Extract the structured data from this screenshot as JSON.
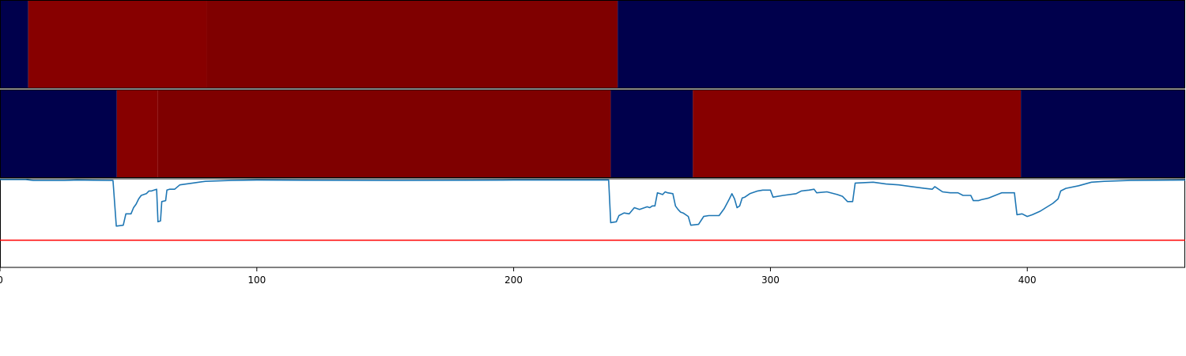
{
  "chart_data": [
    {
      "type": "heatmap",
      "colors": {
        "low": "#00004c",
        "high": "#870000",
        "mid_high": "#7f0000"
      },
      "segments": [
        {
          "x0": 0,
          "x1": 11,
          "level": "low"
        },
        {
          "x0": 11,
          "x1": 80.5,
          "level": "high"
        },
        {
          "x0": 80.5,
          "x1": 240.5,
          "level": "mid_high"
        },
        {
          "x0": 240.5,
          "x1": 461.5,
          "level": "low"
        }
      ]
    },
    {
      "type": "heatmap",
      "colors": {
        "low": "#00004c",
        "high": "#870000",
        "mid_high": "#7f0000"
      },
      "segments": [
        {
          "x0": 0,
          "x1": 45.5,
          "level": "low"
        },
        {
          "x0": 45.5,
          "x1": 61.5,
          "level": "high"
        },
        {
          "x0": 61.5,
          "x1": 237.8,
          "level": "mid_high"
        },
        {
          "x0": 237.8,
          "x1": 269.8,
          "level": "low"
        },
        {
          "x0": 269.8,
          "x1": 397.5,
          "level": "high"
        },
        {
          "x0": 397.5,
          "x1": 461.5,
          "level": "low"
        }
      ]
    },
    {
      "type": "line",
      "xlim": [
        0,
        461.5
      ],
      "ylim": [
        0,
        1
      ],
      "x_ticks": [
        0,
        100,
        200,
        300,
        400
      ],
      "threshold": {
        "y": 0.31,
        "color": "#ff0000"
      },
      "series": [
        {
          "color": "#1f77b4",
          "points": [
            [
              0,
              1.0
            ],
            [
              10,
              1.0
            ],
            [
              13,
              0.99
            ],
            [
              20,
              0.99
            ],
            [
              25,
              0.99
            ],
            [
              30,
              0.995
            ],
            [
              44,
              0.99
            ],
            [
              45.3,
              0.47
            ],
            [
              48,
              0.48
            ],
            [
              49,
              0.61
            ],
            [
              51,
              0.61
            ],
            [
              52,
              0.68
            ],
            [
              53,
              0.72
            ],
            [
              54,
              0.78
            ],
            [
              55,
              0.82
            ],
            [
              57,
              0.84
            ],
            [
              58,
              0.87
            ],
            [
              59,
              0.87
            ],
            [
              60,
              0.88
            ],
            [
              61,
              0.89
            ],
            [
              61.5,
              0.52
            ],
            [
              62.5,
              0.53
            ],
            [
              63,
              0.75
            ],
            [
              64.5,
              0.76
            ],
            [
              65,
              0.88
            ],
            [
              66,
              0.89
            ],
            [
              68,
              0.89
            ],
            [
              70,
              0.94
            ],
            [
              75,
              0.96
            ],
            [
              80,
              0.98
            ],
            [
              90,
              0.99
            ],
            [
              100,
              0.995
            ],
            [
              150,
              0.99
            ],
            [
              200,
              0.995
            ],
            [
              237,
              0.995
            ],
            [
              237.8,
              0.51
            ],
            [
              240,
              0.52
            ],
            [
              241,
              0.59
            ],
            [
              243,
              0.62
            ],
            [
              245,
              0.61
            ],
            [
              247,
              0.68
            ],
            [
              249,
              0.66
            ],
            [
              252,
              0.69
            ],
            [
              253,
              0.68
            ],
            [
              254,
              0.7
            ],
            [
              255,
              0.7
            ],
            [
              256,
              0.85
            ],
            [
              257,
              0.84
            ],
            [
              258,
              0.83
            ],
            [
              259,
              0.86
            ],
            [
              260,
              0.85
            ],
            [
              262,
              0.84
            ],
            [
              263,
              0.7
            ],
            [
              264,
              0.66
            ],
            [
              265,
              0.63
            ],
            [
              266,
              0.62
            ],
            [
              268,
              0.58
            ],
            [
              269,
              0.48
            ],
            [
              272,
              0.49
            ],
            [
              274,
              0.58
            ],
            [
              276,
              0.59
            ],
            [
              280,
              0.59
            ],
            [
              282,
              0.67
            ],
            [
              284,
              0.78
            ],
            [
              285,
              0.84
            ],
            [
              286,
              0.78
            ],
            [
              287,
              0.68
            ],
            [
              288,
              0.7
            ],
            [
              289,
              0.79
            ],
            [
              290,
              0.8
            ],
            [
              292,
              0.84
            ],
            [
              295,
              0.87
            ],
            [
              297,
              0.88
            ],
            [
              300,
              0.88
            ],
            [
              301,
              0.8
            ],
            [
              305,
              0.82
            ],
            [
              310,
              0.84
            ],
            [
              312,
              0.87
            ],
            [
              315,
              0.88
            ],
            [
              317,
              0.89
            ],
            [
              318,
              0.85
            ],
            [
              322,
              0.86
            ],
            [
              326,
              0.83
            ],
            [
              328,
              0.81
            ],
            [
              330,
              0.75
            ],
            [
              332,
              0.75
            ],
            [
              333,
              0.96
            ],
            [
              340,
              0.97
            ],
            [
              345,
              0.95
            ],
            [
              350,
              0.94
            ],
            [
              355,
              0.92
            ],
            [
              360,
              0.9
            ],
            [
              363,
              0.89
            ],
            [
              364,
              0.92
            ],
            [
              367,
              0.86
            ],
            [
              370,
              0.85
            ],
            [
              373,
              0.85
            ],
            [
              375,
              0.82
            ],
            [
              378,
              0.82
            ],
            [
              379,
              0.76
            ],
            [
              381,
              0.76
            ],
            [
              382,
              0.77
            ],
            [
              385,
              0.79
            ],
            [
              390,
              0.85
            ],
            [
              395,
              0.85
            ],
            [
              396,
              0.6
            ],
            [
              398,
              0.61
            ],
            [
              400,
              0.58
            ],
            [
              402,
              0.6
            ],
            [
              405,
              0.64
            ],
            [
              410,
              0.73
            ],
            [
              412,
              0.78
            ],
            [
              413,
              0.87
            ],
            [
              415,
              0.9
            ],
            [
              420,
              0.93
            ],
            [
              425,
              0.97
            ],
            [
              430,
              0.98
            ],
            [
              440,
              0.99
            ],
            [
              461.5,
              0.995
            ]
          ]
        }
      ]
    }
  ]
}
